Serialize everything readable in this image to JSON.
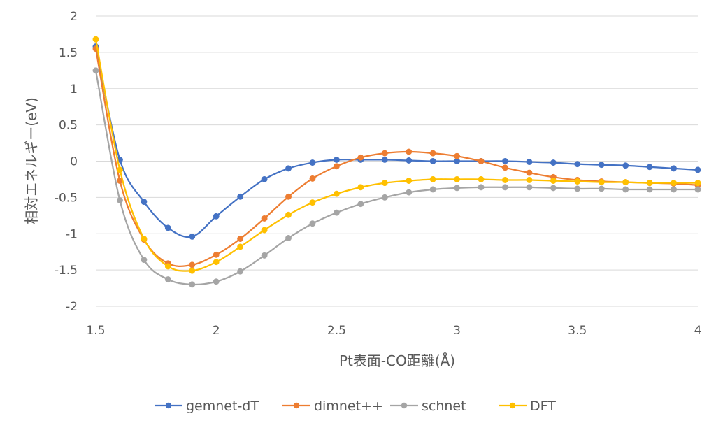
{
  "chart_data": {
    "type": "line",
    "xlabel": "Pt表面-CO距離(Å)",
    "ylabel": "相対エネルギー(eV)",
    "xlim": [
      1.5,
      4
    ],
    "ylim": [
      -2,
      2
    ],
    "x_ticks": [
      "1.5",
      "2",
      "2.5",
      "3",
      "3.5",
      "4"
    ],
    "y_ticks": [
      "2",
      "1.5",
      "1",
      "0.5",
      "0",
      "-0.5",
      "-1",
      "-1.5",
      "-2"
    ],
    "grid": "horizontal",
    "legend_position": "bottom",
    "x": [
      1.5,
      1.6,
      1.7,
      1.8,
      1.9,
      2.0,
      2.1,
      2.2,
      2.3,
      2.4,
      2.5,
      2.6,
      2.7,
      2.8,
      2.9,
      3.0,
      3.1,
      3.2,
      3.3,
      3.4,
      3.5,
      3.6,
      3.7,
      3.8,
      3.9,
      4.0
    ],
    "series": [
      {
        "name": "gemnet-dT",
        "color": "#4472C4",
        "values": [
          1.58,
          0.02,
          -0.56,
          -0.92,
          -1.04,
          -0.76,
          -0.49,
          -0.25,
          -0.1,
          -0.02,
          0.02,
          0.02,
          0.02,
          0.01,
          0.0,
          0.0,
          0.0,
          0.0,
          -0.01,
          -0.02,
          -0.04,
          -0.05,
          -0.06,
          -0.08,
          -0.1,
          -0.12
        ]
      },
      {
        "name": "dimnet++",
        "color": "#ED7D31",
        "values": [
          1.55,
          -0.27,
          -1.08,
          -1.41,
          -1.43,
          -1.29,
          -1.07,
          -0.79,
          -0.49,
          -0.24,
          -0.07,
          0.05,
          0.11,
          0.13,
          0.11,
          0.07,
          0.0,
          -0.09,
          -0.16,
          -0.22,
          -0.26,
          -0.28,
          -0.29,
          -0.3,
          -0.31,
          -0.33
        ]
      },
      {
        "name": "schnet",
        "color": "#A5A5A5",
        "values": [
          1.25,
          -0.54,
          -1.36,
          -1.63,
          -1.7,
          -1.66,
          -1.52,
          -1.3,
          -1.06,
          -0.86,
          -0.71,
          -0.59,
          -0.5,
          -0.43,
          -0.39,
          -0.37,
          -0.36,
          -0.36,
          -0.36,
          -0.37,
          -0.38,
          -0.38,
          -0.39,
          -0.39,
          -0.39,
          -0.39
        ]
      },
      {
        "name": "DFT",
        "color": "#FFC000",
        "values": [
          1.68,
          -0.12,
          -1.07,
          -1.45,
          -1.51,
          -1.39,
          -1.18,
          -0.95,
          -0.74,
          -0.57,
          -0.45,
          -0.36,
          -0.3,
          -0.27,
          -0.25,
          -0.25,
          -0.25,
          -0.26,
          -0.26,
          -0.27,
          -0.28,
          -0.29,
          -0.29,
          -0.3,
          -0.3,
          -0.3
        ]
      }
    ]
  }
}
